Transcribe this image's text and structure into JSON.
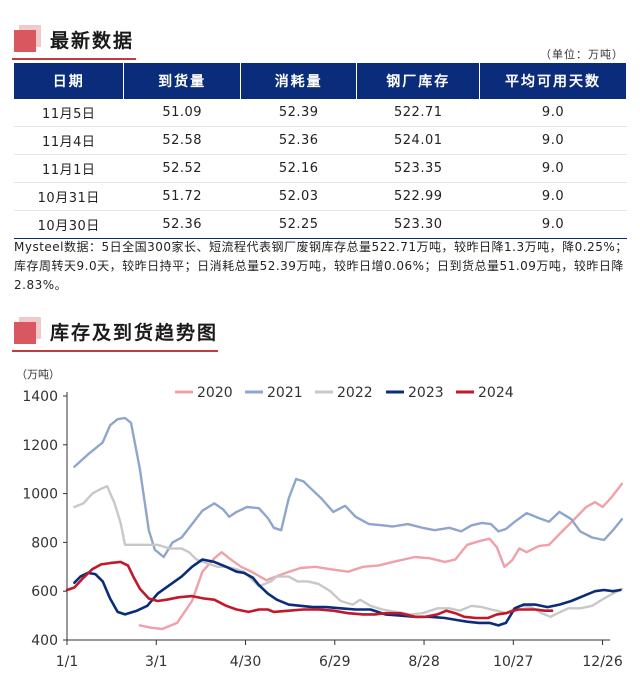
{
  "header1": {
    "title": "最新数据"
  },
  "unit_note": "（单位：万吨）",
  "table": {
    "columns": [
      "日期",
      "到货量",
      "消耗量",
      "钢厂库存",
      "平均可用天数"
    ],
    "rows": [
      [
        "11月5日",
        "51.09",
        "52.39",
        "522.71",
        "9.0"
      ],
      [
        "11月4日",
        "52.58",
        "52.36",
        "524.01",
        "9.0"
      ],
      [
        "11月1日",
        "52.52",
        "52.16",
        "523.35",
        "9.0"
      ],
      [
        "10月31日",
        "51.72",
        "52.03",
        "522.99",
        "9.0"
      ],
      [
        "10月30日",
        "52.36",
        "52.25",
        "523.30",
        "9.0"
      ]
    ]
  },
  "summary": "Mysteel数据：5日全国300家长、短流程代表钢厂废钢库存总量522.71万吨，较昨日降1.3万吨，降0.25%；库存周转天9.0天，较昨日持平；日消耗总量52.39万吨，较昨日增0.06%；日到货总量51.09万吨，较昨日降2.83%。",
  "header2": {
    "title": "库存及到货趋势图"
  },
  "colors": {
    "accent": "#c33a40",
    "header_bg": "#0b2c7a"
  },
  "chart_data": {
    "type": "line",
    "title": "库存及到货趋势图",
    "ylabel": "（万吨）",
    "xlabel": "",
    "ylim": [
      400,
      1400
    ],
    "xlim": [
      1,
      366
    ],
    "yticks": [
      400,
      600,
      800,
      1000,
      1200,
      1400
    ],
    "xticks": [
      {
        "day": 1,
        "label": "1/1"
      },
      {
        "day": 61,
        "label": "3/1"
      },
      {
        "day": 121,
        "label": "4/30"
      },
      {
        "day": 181,
        "label": "6/29"
      },
      {
        "day": 241,
        "label": "8/28"
      },
      {
        "day": 301,
        "label": "10/27"
      },
      {
        "day": 361,
        "label": "12/26"
      }
    ],
    "legend_position": "top",
    "series": [
      {
        "name": "2020",
        "color": "#f0a0a8",
        "points": [
          [
            50,
            460
          ],
          [
            58,
            450
          ],
          [
            65,
            445
          ],
          [
            75,
            470
          ],
          [
            85,
            560
          ],
          [
            92,
            680
          ],
          [
            100,
            735
          ],
          [
            105,
            760
          ],
          [
            110,
            735
          ],
          [
            118,
            700
          ],
          [
            125,
            680
          ],
          [
            135,
            645
          ],
          [
            148,
            675
          ],
          [
            158,
            695
          ],
          [
            168,
            700
          ],
          [
            178,
            690
          ],
          [
            190,
            680
          ],
          [
            200,
            700
          ],
          [
            210,
            705
          ],
          [
            220,
            720
          ],
          [
            235,
            740
          ],
          [
            245,
            735
          ],
          [
            255,
            720
          ],
          [
            262,
            730
          ],
          [
            270,
            790
          ],
          [
            278,
            805
          ],
          [
            285,
            815
          ],
          [
            290,
            780
          ],
          [
            295,
            700
          ],
          [
            300,
            725
          ],
          [
            305,
            775
          ],
          [
            310,
            760
          ],
          [
            318,
            785
          ],
          [
            325,
            790
          ],
          [
            333,
            840
          ],
          [
            342,
            895
          ],
          [
            350,
            945
          ],
          [
            356,
            965
          ],
          [
            361,
            945
          ],
          [
            367,
            985
          ],
          [
            374,
            1040
          ]
        ]
      },
      {
        "name": "2021",
        "color": "#8ea6cc",
        "points": [
          [
            6,
            1110
          ],
          [
            15,
            1160
          ],
          [
            25,
            1210
          ],
          [
            30,
            1280
          ],
          [
            35,
            1305
          ],
          [
            40,
            1310
          ],
          [
            44,
            1290
          ],
          [
            50,
            1100
          ],
          [
            56,
            850
          ],
          [
            60,
            770
          ],
          [
            66,
            740
          ],
          [
            72,
            800
          ],
          [
            78,
            820
          ],
          [
            85,
            875
          ],
          [
            92,
            930
          ],
          [
            100,
            960
          ],
          [
            106,
            935
          ],
          [
            110,
            905
          ],
          [
            115,
            925
          ],
          [
            122,
            945
          ],
          [
            130,
            940
          ],
          [
            136,
            900
          ],
          [
            140,
            860
          ],
          [
            145,
            850
          ],
          [
            150,
            980
          ],
          [
            155,
            1060
          ],
          [
            160,
            1050
          ],
          [
            165,
            1020
          ],
          [
            172,
            980
          ],
          [
            180,
            925
          ],
          [
            188,
            950
          ],
          [
            195,
            905
          ],
          [
            204,
            875
          ],
          [
            213,
            870
          ],
          [
            220,
            865
          ],
          [
            230,
            875
          ],
          [
            240,
            860
          ],
          [
            248,
            850
          ],
          [
            258,
            860
          ],
          [
            266,
            845
          ],
          [
            273,
            870
          ],
          [
            280,
            880
          ],
          [
            286,
            875
          ],
          [
            291,
            845
          ],
          [
            296,
            855
          ],
          [
            302,
            885
          ],
          [
            310,
            920
          ],
          [
            318,
            900
          ],
          [
            325,
            885
          ],
          [
            332,
            925
          ],
          [
            340,
            895
          ],
          [
            346,
            845
          ],
          [
            354,
            820
          ],
          [
            362,
            810
          ],
          [
            368,
            850
          ],
          [
            374,
            895
          ]
        ]
      },
      {
        "name": "2022",
        "color": "#c8c8c8",
        "points": [
          [
            6,
            945
          ],
          [
            12,
            960
          ],
          [
            18,
            1000
          ],
          [
            24,
            1020
          ],
          [
            28,
            1030
          ],
          [
            33,
            960
          ],
          [
            37,
            880
          ],
          [
            40,
            790
          ],
          [
            48,
            790
          ],
          [
            55,
            790
          ],
          [
            62,
            790
          ],
          [
            70,
            775
          ],
          [
            78,
            775
          ],
          [
            83,
            760
          ],
          [
            88,
            730
          ],
          [
            95,
            715
          ],
          [
            102,
            700
          ],
          [
            108,
            700
          ],
          [
            115,
            690
          ],
          [
            120,
            680
          ],
          [
            130,
            620
          ],
          [
            138,
            640
          ],
          [
            142,
            660
          ],
          [
            150,
            660
          ],
          [
            156,
            640
          ],
          [
            163,
            640
          ],
          [
            170,
            630
          ],
          [
            178,
            600
          ],
          [
            185,
            560
          ],
          [
            193,
            545
          ],
          [
            198,
            565
          ],
          [
            205,
            540
          ],
          [
            213,
            525
          ],
          [
            222,
            515
          ],
          [
            232,
            505
          ],
          [
            240,
            510
          ],
          [
            250,
            530
          ],
          [
            258,
            530
          ],
          [
            265,
            520
          ],
          [
            273,
            540
          ],
          [
            280,
            535
          ],
          [
            286,
            525
          ],
          [
            290,
            520
          ],
          [
            296,
            510
          ],
          [
            305,
            540
          ],
          [
            313,
            535
          ],
          [
            320,
            510
          ],
          [
            326,
            495
          ],
          [
            331,
            510
          ],
          [
            338,
            530
          ],
          [
            346,
            530
          ],
          [
            354,
            540
          ],
          [
            362,
            570
          ],
          [
            368,
            590
          ],
          [
            374,
            610
          ]
        ]
      },
      {
        "name": "2023",
        "color": "#0b2c7a",
        "points": [
          [
            6,
            635
          ],
          [
            10,
            660
          ],
          [
            15,
            675
          ],
          [
            20,
            670
          ],
          [
            25,
            640
          ],
          [
            30,
            570
          ],
          [
            35,
            515
          ],
          [
            40,
            505
          ],
          [
            48,
            520
          ],
          [
            55,
            540
          ],
          [
            62,
            590
          ],
          [
            70,
            625
          ],
          [
            78,
            660
          ],
          [
            85,
            700
          ],
          [
            92,
            730
          ],
          [
            100,
            720
          ],
          [
            108,
            700
          ],
          [
            115,
            680
          ],
          [
            120,
            675
          ],
          [
            126,
            655
          ],
          [
            130,
            625
          ],
          [
            136,
            590
          ],
          [
            142,
            565
          ],
          [
            150,
            545
          ],
          [
            158,
            540
          ],
          [
            166,
            535
          ],
          [
            175,
            535
          ],
          [
            185,
            530
          ],
          [
            195,
            525
          ],
          [
            205,
            525
          ],
          [
            215,
            505
          ],
          [
            225,
            500
          ],
          [
            235,
            495
          ],
          [
            245,
            495
          ],
          [
            255,
            490
          ],
          [
            265,
            480
          ],
          [
            270,
            475
          ],
          [
            278,
            470
          ],
          [
            285,
            470
          ],
          [
            291,
            460
          ],
          [
            296,
            470
          ],
          [
            302,
            530
          ],
          [
            308,
            545
          ],
          [
            316,
            545
          ],
          [
            324,
            535
          ],
          [
            332,
            545
          ],
          [
            340,
            560
          ],
          [
            348,
            580
          ],
          [
            356,
            600
          ],
          [
            362,
            605
          ],
          [
            368,
            600
          ],
          [
            373,
            605
          ]
        ]
      },
      {
        "name": "2024",
        "color": "#c0192a",
        "points": [
          [
            1,
            605
          ],
          [
            6,
            615
          ],
          [
            12,
            655
          ],
          [
            18,
            690
          ],
          [
            24,
            710
          ],
          [
            30,
            715
          ],
          [
            37,
            720
          ],
          [
            42,
            705
          ],
          [
            46,
            655
          ],
          [
            50,
            610
          ],
          [
            56,
            570
          ],
          [
            62,
            560
          ],
          [
            68,
            565
          ],
          [
            76,
            575
          ],
          [
            85,
            580
          ],
          [
            93,
            570
          ],
          [
            100,
            565
          ],
          [
            108,
            540
          ],
          [
            115,
            525
          ],
          [
            123,
            515
          ],
          [
            130,
            525
          ],
          [
            136,
            525
          ],
          [
            140,
            515
          ],
          [
            150,
            520
          ],
          [
            160,
            525
          ],
          [
            170,
            525
          ],
          [
            180,
            520
          ],
          [
            190,
            510
          ],
          [
            200,
            505
          ],
          [
            208,
            505
          ],
          [
            215,
            510
          ],
          [
            225,
            510
          ],
          [
            235,
            495
          ],
          [
            242,
            495
          ],
          [
            250,
            505
          ],
          [
            256,
            520
          ],
          [
            262,
            510
          ],
          [
            268,
            495
          ],
          [
            276,
            490
          ],
          [
            284,
            490
          ],
          [
            290,
            505
          ],
          [
            296,
            510
          ],
          [
            304,
            525
          ],
          [
            310,
            525
          ],
          [
            316,
            525
          ],
          [
            322,
            520
          ],
          [
            327,
            520
          ]
        ]
      }
    ]
  }
}
